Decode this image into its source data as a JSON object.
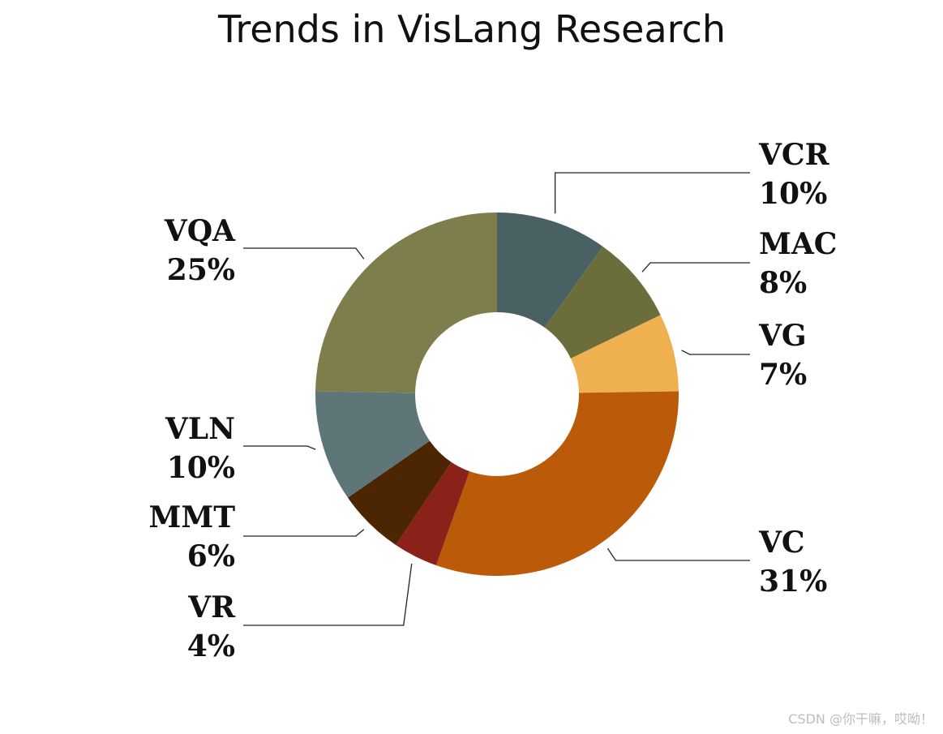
{
  "chart_data": {
    "type": "pie",
    "title": "Trends in VisLang Research",
    "donut": true,
    "slices": [
      {
        "label": "VCR",
        "percent_label": "10%",
        "value": 10,
        "color": "#4a6163"
      },
      {
        "label": "MAC",
        "percent_label": "8%",
        "value": 8,
        "color": "#6b6e3b"
      },
      {
        "label": "VG",
        "percent_label": "7%",
        "value": 7,
        "color": "#efb050"
      },
      {
        "label": "VC",
        "percent_label": "31%",
        "value": 31,
        "color": "#bb5a08"
      },
      {
        "label": "VR",
        "percent_label": "4%",
        "value": 4,
        "color": "#8a2219"
      },
      {
        "label": "MMT",
        "percent_label": "6%",
        "value": 6,
        "color": "#4c2602"
      },
      {
        "label": "VLN",
        "percent_label": "10%",
        "value": 10,
        "color": "#5f7678"
      },
      {
        "label": "VQA",
        "percent_label": "25%",
        "value": 25,
        "color": "#7d7e4c"
      }
    ]
  },
  "watermark": "CSDN @你干嘛，哎呦！"
}
